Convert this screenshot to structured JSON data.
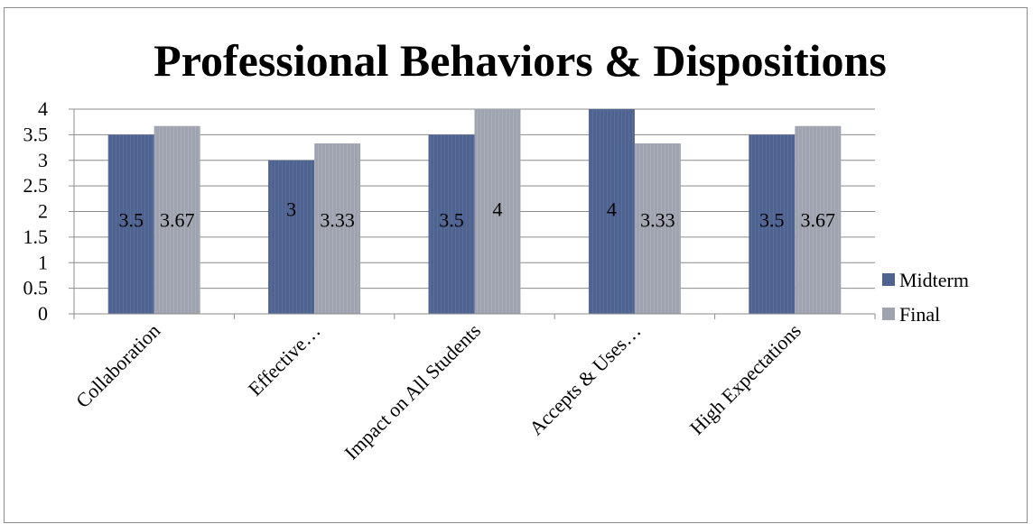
{
  "chart_data": {
    "type": "bar",
    "title": "Professional Behaviors & Dispositions",
    "xlabel": "",
    "ylabel": "",
    "categories": [
      "Collaboration",
      "Effective…",
      "Impact on All Students",
      "Accepts & Uses…",
      "High Expectations"
    ],
    "series": [
      {
        "name": "Midterm",
        "values": [
          3.5,
          3,
          3.5,
          4,
          3.5
        ],
        "labels": [
          "3.5",
          "3",
          "3.5",
          "4",
          "3.5"
        ],
        "color": "#4f6391"
      },
      {
        "name": "Final",
        "values": [
          3.67,
          3.33,
          4,
          3.33,
          3.67
        ],
        "labels": [
          "3.67",
          "3.33",
          "4",
          "3.33",
          "3.67"
        ],
        "color": "#9fa3b0"
      }
    ],
    "ylim": [
      0,
      4
    ],
    "yticks": [
      "0",
      "0.5",
      "1",
      "1.5",
      "2",
      "2.5",
      "3",
      "3.5",
      "4"
    ],
    "grid": true,
    "legend_position": "right"
  }
}
